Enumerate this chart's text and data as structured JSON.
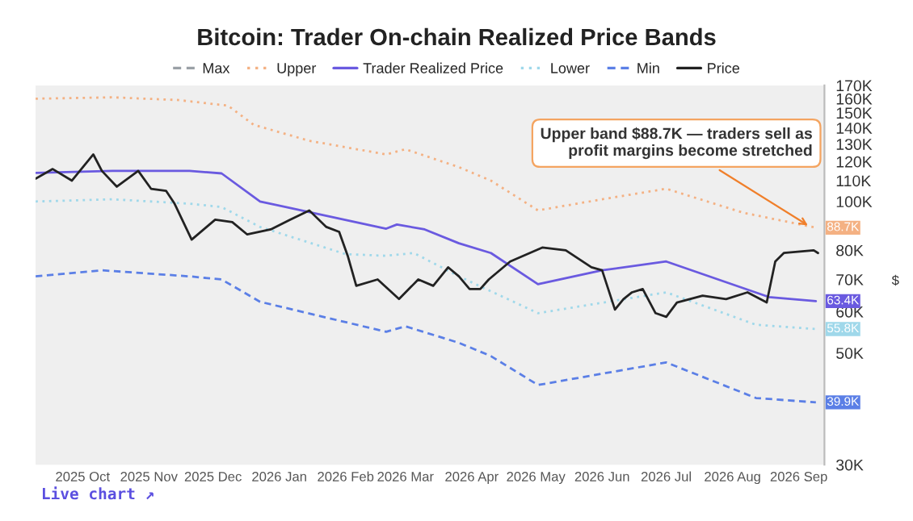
{
  "chart_data": {
    "type": "line",
    "title": "Bitcoin: Trader On-chain Realized Price Bands",
    "ylabel": "$",
    "log": "y",
    "legend": "top",
    "grid": false,
    "xlim": [
      "2025-09-09",
      "2026-09-13"
    ],
    "xticks": [
      {
        "value": "2025-10-01",
        "label": "2025 Oct"
      },
      {
        "value": "2025-11-01",
        "label": "2025 Nov"
      },
      {
        "value": "2025-12-01",
        "label": "2025 Dec"
      },
      {
        "value": "2026-01-01",
        "label": "2026 Jan"
      },
      {
        "value": "2026-02-01",
        "label": "2026 Feb"
      },
      {
        "value": "2026-03-01",
        "label": "2026 Mar"
      },
      {
        "value": "2026-04-01",
        "label": "2026 Apr"
      },
      {
        "value": "2026-05-01",
        "label": "2026 May"
      },
      {
        "value": "2026-06-01",
        "label": "2026 Jun"
      },
      {
        "value": "2026-07-01",
        "label": "2026 Jul"
      },
      {
        "value": "2026-08-01",
        "label": "2026 Aug"
      },
      {
        "value": "2026-09-01",
        "label": "2026 Sep"
      }
    ],
    "ylim": [
      30,
      170
    ],
    "yticks": [
      {
        "value": 30,
        "label": "30K"
      },
      {
        "value": 50,
        "label": "50K"
      },
      {
        "value": 60,
        "label": "60K"
      },
      {
        "value": 70,
        "label": "70K"
      },
      {
        "value": 80,
        "label": "80K"
      },
      {
        "value": 100,
        "label": "100K"
      },
      {
        "value": 110,
        "label": "110K"
      },
      {
        "value": 120,
        "label": "120K"
      },
      {
        "value": 130,
        "label": "130K"
      },
      {
        "value": 140,
        "label": "140K"
      },
      {
        "value": 150,
        "label": "150K"
      },
      {
        "value": 160,
        "label": "160K"
      },
      {
        "value": 170,
        "label": "170K"
      }
    ],
    "series": [
      {
        "name": "Max",
        "color": "#9aa0a6",
        "line_style": "dashed"
      },
      {
        "name": "Upper",
        "color": "#f4b183",
        "line_style": "dotted",
        "x": [
          "2025-09-09",
          "2025-10-15",
          "2025-11-15",
          "2025-12-08",
          "2025-12-20",
          "2026-01-15",
          "2026-02-20",
          "2026-03-01",
          "2026-03-26",
          "2026-04-10",
          "2026-05-02",
          "2026-06-01",
          "2026-07-01",
          "2026-08-06",
          "2026-09-09"
        ],
        "values": [
          160,
          161,
          159,
          155,
          142,
          132,
          124,
          127,
          117,
          110,
          96,
          101,
          106,
          95,
          88.7
        ],
        "value_labels": [
          null,
          null,
          null,
          null,
          null,
          null,
          null,
          null,
          null,
          null,
          null,
          null,
          null,
          null,
          "88.7K"
        ]
      },
      {
        "name": "Trader Realized Price",
        "color": "#6a5ae0",
        "line_style": "solid",
        "x": [
          "2025-09-09",
          "2025-10-15",
          "2025-11-20",
          "2025-12-05",
          "2025-12-23",
          "2026-02-20",
          "2026-02-25",
          "2026-03-10",
          "2026-03-26",
          "2026-04-10",
          "2026-05-02",
          "2026-06-01",
          "2026-07-01",
          "2026-08-18",
          "2026-09-09"
        ],
        "values": [
          114,
          115,
          115,
          113.7,
          100,
          88.3,
          90,
          88,
          82.6,
          79,
          68.5,
          73,
          76,
          64.6,
          63.4
        ],
        "value_labels": [
          null,
          null,
          null,
          null,
          null,
          null,
          null,
          null,
          null,
          null,
          null,
          null,
          null,
          null,
          "63.4K"
        ]
      },
      {
        "name": "Lower",
        "color": "#9fd8ea",
        "line_style": "dotted",
        "x": [
          "2025-09-09",
          "2025-10-15",
          "2025-11-20",
          "2025-12-05",
          "2025-12-23",
          "2026-02-01",
          "2026-02-20",
          "2026-03-05",
          "2026-03-26",
          "2026-05-02",
          "2026-07-01",
          "2026-08-12",
          "2026-09-09"
        ],
        "values": [
          100,
          101,
          99,
          97.5,
          89,
          78.6,
          78,
          79,
          71,
          60,
          66,
          56.9,
          55.8
        ],
        "value_labels": [
          null,
          null,
          null,
          null,
          null,
          null,
          null,
          null,
          null,
          null,
          null,
          null,
          "55.8K"
        ]
      },
      {
        "name": "Min",
        "color": "#5b7fe6",
        "line_style": "dashed",
        "x": [
          "2025-09-09",
          "2025-10-10",
          "2025-11-20",
          "2025-12-05",
          "2025-12-23",
          "2026-02-20",
          "2026-03-01",
          "2026-03-26",
          "2026-04-10",
          "2026-05-02",
          "2026-07-01",
          "2026-08-12",
          "2026-09-09"
        ],
        "values": [
          71,
          73,
          71,
          70,
          63.2,
          55.1,
          56.5,
          52.4,
          49.3,
          43.2,
          47.9,
          40.7,
          39.9
        ],
        "value_labels": [
          null,
          null,
          null,
          null,
          null,
          null,
          null,
          null,
          null,
          null,
          null,
          null,
          "39.9K"
        ]
      },
      {
        "name": "Price",
        "color": "#222222",
        "line_style": "solid",
        "x": [
          "2025-09-09",
          "2025-09-17",
          "2025-09-26",
          "2025-10-06",
          "2025-10-10",
          "2025-10-17",
          "2025-10-27",
          "2025-11-02",
          "2025-11-09",
          "2025-11-13",
          "2025-11-21",
          "2025-11-28",
          "2025-12-02",
          "2025-12-10",
          "2025-12-17",
          "2025-12-28",
          "2026-01-06",
          "2026-01-15",
          "2026-01-23",
          "2026-01-29",
          "2026-02-02",
          "2026-02-06",
          "2026-02-16",
          "2026-02-26",
          "2026-03-07",
          "2026-03-14",
          "2026-03-21",
          "2026-03-26",
          "2026-03-31",
          "2026-04-05",
          "2026-04-09",
          "2026-04-19",
          "2026-05-04",
          "2026-05-15",
          "2026-05-27",
          "2026-06-01",
          "2026-06-07",
          "2026-06-11",
          "2026-06-15",
          "2026-06-20",
          "2026-06-26",
          "2026-07-01",
          "2026-07-06",
          "2026-07-18",
          "2026-07-29",
          "2026-08-08",
          "2026-08-17",
          "2026-08-21",
          "2026-08-25",
          "2026-09-08",
          "2026-09-10"
        ],
        "values": [
          111,
          116,
          110,
          124,
          115,
          107,
          115,
          106,
          105,
          99,
          84,
          89,
          92,
          91,
          86,
          88,
          92,
          96,
          89,
          87,
          78,
          68,
          70,
          64,
          70,
          68,
          74,
          71,
          67,
          67,
          70,
          76,
          81,
          80,
          74,
          73,
          61,
          64,
          66,
          67,
          60,
          59,
          63,
          65,
          64,
          66,
          63,
          76,
          79,
          80,
          79
        ]
      }
    ],
    "annotations": [
      {
        "text": "Upper band $88.7K — traders sell as\nprofit margins become stretched",
        "x": "2026-09-07",
        "y": 88.7
      },
      "Live chart ↗"
    ]
  }
}
